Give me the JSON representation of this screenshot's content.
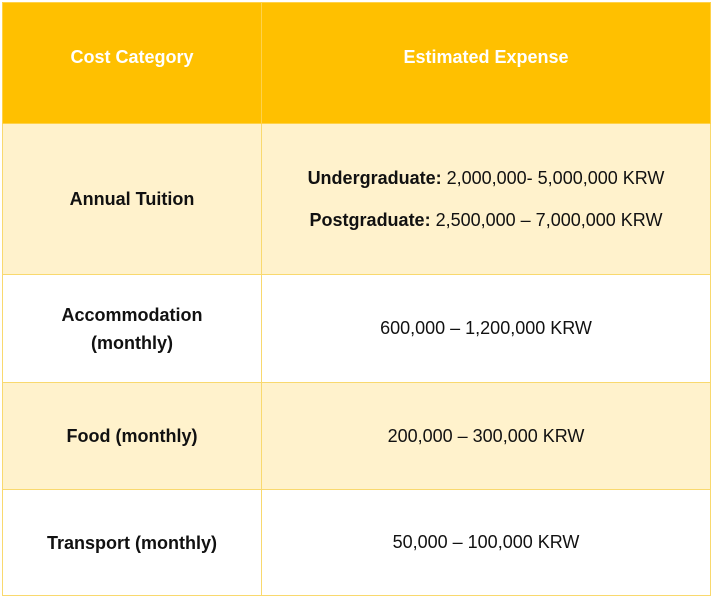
{
  "table": {
    "headers": [
      "Cost Category",
      "Estimated Expense"
    ],
    "rows": [
      {
        "category": "Annual Tuition",
        "lines": [
          {
            "label": "Undergraduate:",
            "value": " 2,000,000- 5,000,000 KRW"
          },
          {
            "label": "Postgraduate:",
            "value": "2,500,000 – 7,000,000 KRW"
          }
        ]
      },
      {
        "category_line1": "Accommodation",
        "category_line2": "(monthly)",
        "value": "600,000 – 1,200,000 KRW"
      },
      {
        "category": "Food (monthly)",
        "value": "200,000 – 300,000 KRW"
      },
      {
        "category": "Transport (monthly)",
        "value": "50,000 – 100,000 KRW"
      }
    ]
  },
  "colors": {
    "header_bg": "#ffc000",
    "header_text": "#ffffff",
    "tinted_row_bg": "#fff2cc",
    "border": "#f9d96e"
  }
}
